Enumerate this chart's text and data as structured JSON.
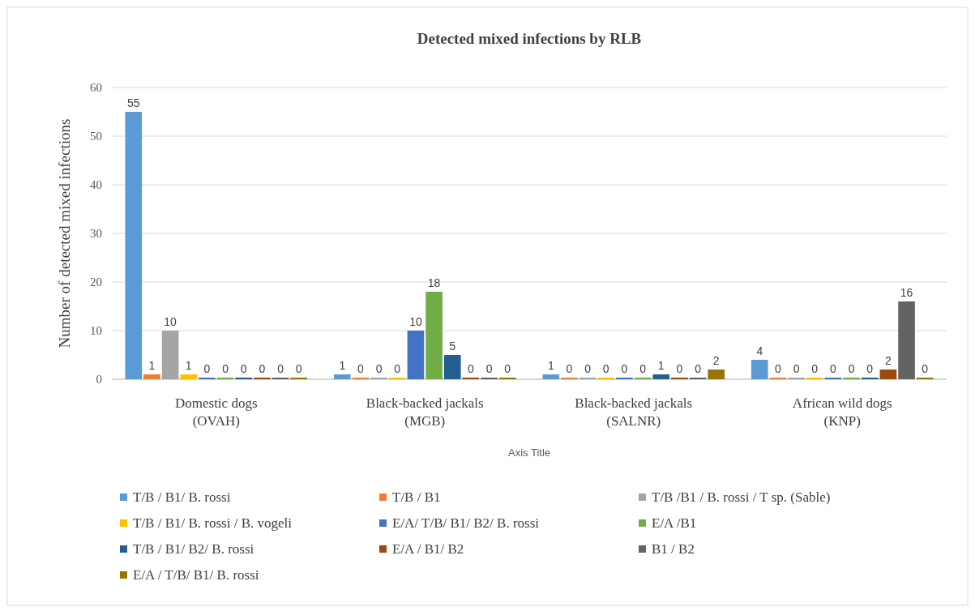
{
  "chart_data": {
    "type": "bar",
    "title": "Detected mixed infections by RLB",
    "xlabel": "Axis Title",
    "ylabel": "Number of detected mixed infections",
    "categories": [
      "Domestic dogs\n(OVAH)",
      "Black-backed jackals\n(MGB)",
      "Black-backed jackals\n(SALNR)",
      "African wild dogs\n(KNP)"
    ],
    "series": [
      {
        "name": "T/B / B1/ B. rossi",
        "color": "#5b9bd5",
        "values": [
          55,
          1,
          1,
          4
        ]
      },
      {
        "name": "T/B / B1",
        "color": "#ed7d31",
        "values": [
          1,
          0,
          0,
          0
        ]
      },
      {
        "name": "T/B /B1 / B. rossi / T sp. (Sable)",
        "color": "#a5a5a5",
        "values": [
          10,
          0,
          0,
          0
        ]
      },
      {
        "name": "T/B / B1/ B. rossi / B. vogeli",
        "color": "#ffc000",
        "values": [
          1,
          0,
          0,
          0
        ]
      },
      {
        "name": "E/A/ T/B/ B1/ B2/ B. rossi",
        "color": "#4472c4",
        "values": [
          0,
          10,
          0,
          0
        ]
      },
      {
        "name": "E/A /B1",
        "color": "#70ad47",
        "values": [
          0,
          18,
          0,
          0
        ]
      },
      {
        "name": "T/B / B1/ B2/ B. rossi",
        "color": "#255e91",
        "values": [
          0,
          5,
          1,
          0
        ]
      },
      {
        "name": "E/A / B1/ B2",
        "color": "#9e480e",
        "values": [
          0,
          0,
          0,
          2
        ]
      },
      {
        "name": "B1 / B2",
        "color": "#636363",
        "values": [
          0,
          0,
          0,
          16
        ]
      },
      {
        "name": "E/A / T/B/ B1/ B. rossi",
        "color": "#997300",
        "values": [
          0,
          0,
          2,
          0
        ]
      }
    ],
    "ylim": [
      0,
      60
    ],
    "yticks": [
      0,
      10,
      20,
      30,
      40,
      50,
      60
    ],
    "grid": "y",
    "data_labels": true,
    "legend": "bottom"
  }
}
